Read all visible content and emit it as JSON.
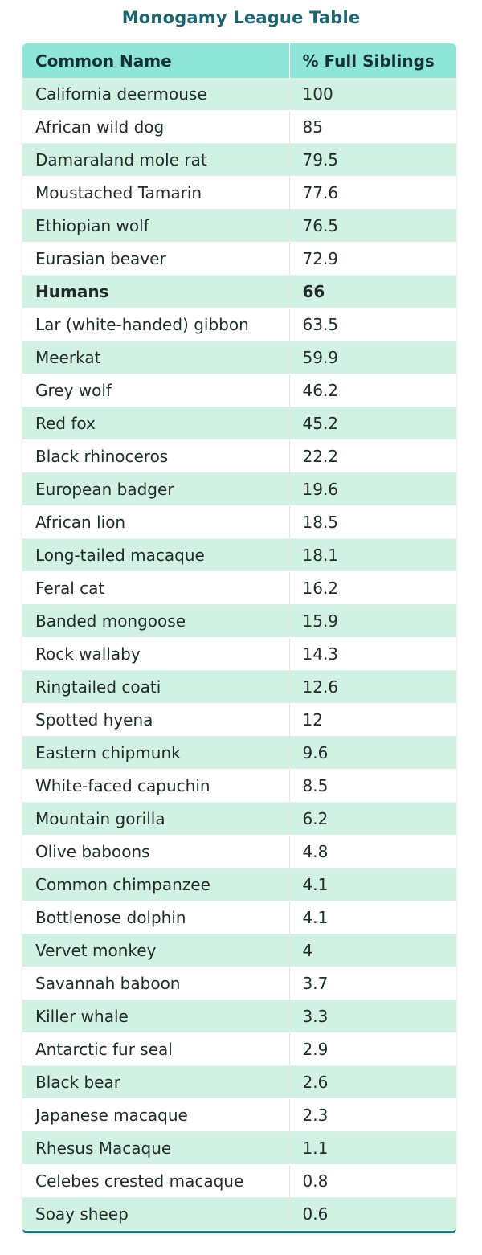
{
  "title": "Monogamy League Table",
  "chart_data": {
    "type": "table",
    "title": "Monogamy League Table",
    "columns": [
      "Common Name",
      "% Full Siblings"
    ],
    "highlight_row": "Humans",
    "rows": [
      [
        "California deermouse",
        "100"
      ],
      [
        "African wild dog",
        "85"
      ],
      [
        "Damaraland mole rat",
        "79.5"
      ],
      [
        "Moustached Tamarin",
        "77.6"
      ],
      [
        "Ethiopian wolf",
        "76.5"
      ],
      [
        "Eurasian beaver",
        "72.9"
      ],
      [
        "Humans",
        "66"
      ],
      [
        "Lar (white-handed) gibbon",
        "63.5"
      ],
      [
        "Meerkat",
        "59.9"
      ],
      [
        "Grey wolf",
        "46.2"
      ],
      [
        "Red fox",
        "45.2"
      ],
      [
        "Black rhinoceros",
        "22.2"
      ],
      [
        "European badger",
        "19.6"
      ],
      [
        "African lion",
        "18.5"
      ],
      [
        "Long-tailed macaque",
        "18.1"
      ],
      [
        "Feral cat",
        "16.2"
      ],
      [
        "Banded mongoose",
        "15.9"
      ],
      [
        "Rock wallaby",
        "14.3"
      ],
      [
        "Ringtailed coati",
        "12.6"
      ],
      [
        "Spotted hyena",
        "12"
      ],
      [
        "Eastern chipmunk",
        "9.6"
      ],
      [
        "White-faced capuchin",
        "8.5"
      ],
      [
        "Mountain gorilla",
        "6.2"
      ],
      [
        "Olive baboons",
        "4.8"
      ],
      [
        "Common chimpanzee",
        "4.1"
      ],
      [
        "Bottlenose dolphin",
        "4.1"
      ],
      [
        "Vervet monkey",
        "4"
      ],
      [
        "Savannah baboon",
        "3.7"
      ],
      [
        "Killer whale",
        "3.3"
      ],
      [
        "Antarctic fur seal",
        "2.9"
      ],
      [
        "Black bear",
        "2.6"
      ],
      [
        "Japanese macaque",
        "2.3"
      ],
      [
        "Rhesus Macaque",
        "1.1"
      ],
      [
        "Celebes crested macaque",
        "0.8"
      ],
      [
        "Soay sheep",
        "0.6"
      ]
    ]
  },
  "colors": {
    "title": "#1b6470",
    "header_bg": "#8fe6d8",
    "row_alt_bg": "#d1f2e3",
    "row_bg": "#ffffff",
    "bottom_border": "#1a7a7e"
  }
}
